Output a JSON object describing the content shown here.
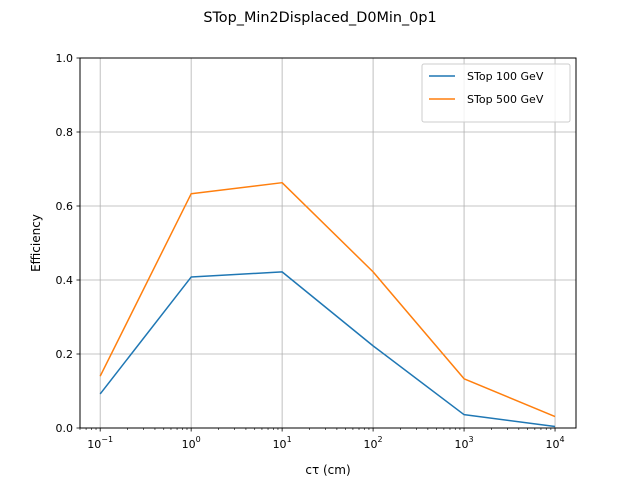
{
  "chart_data": {
    "type": "line",
    "title": "STop_Min2Displaced_D0Min_0p1",
    "xlabel": "cτ (cm)",
    "ylabel": "Efficiency",
    "xscale": "log",
    "xlim": [
      0.06,
      17000
    ],
    "ylim": [
      0.0,
      1.0
    ],
    "grid": true,
    "legend_position": "top-right",
    "x": [
      0.1,
      1,
      10,
      100,
      1000,
      10000
    ],
    "x_tick_labels": [
      {
        "base": "10",
        "exp": "−1",
        "value": 0.1
      },
      {
        "base": "10",
        "exp": "0",
        "value": 1
      },
      {
        "base": "10",
        "exp": "1",
        "value": 10
      },
      {
        "base": "10",
        "exp": "2",
        "value": 100
      },
      {
        "base": "10",
        "exp": "3",
        "value": 1000
      },
      {
        "base": "10",
        "exp": "4",
        "value": 10000
      }
    ],
    "y_ticks": [
      0.0,
      0.2,
      0.4,
      0.6,
      0.8,
      1.0
    ],
    "y_tick_labels": [
      "0.0",
      "0.2",
      "0.4",
      "0.6",
      "0.8",
      "1.0"
    ],
    "series": [
      {
        "name": "STop 100 GeV",
        "color": "#1f77b4",
        "values": [
          0.092,
          0.408,
          0.422,
          0.222,
          0.036,
          0.004
        ]
      },
      {
        "name": "STop 500 GeV",
        "color": "#ff7f0e",
        "values": [
          0.14,
          0.633,
          0.663,
          0.422,
          0.133,
          0.031
        ]
      }
    ]
  }
}
